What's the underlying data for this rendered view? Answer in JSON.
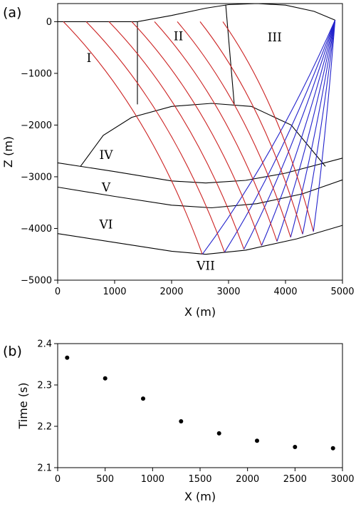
{
  "panel_a": {
    "label": "(a)"
  },
  "panel_b": {
    "label": "(b)"
  },
  "chart_data": [
    {
      "type": "line",
      "title": "",
      "xlabel": "X (m)",
      "ylabel": "Z (m)",
      "xlim": [
        0,
        5000
      ],
      "ylim": [
        -5000,
        350
      ],
      "xticks": [
        0,
        1000,
        2000,
        3000,
        4000,
        5000
      ],
      "yticks": [
        0,
        -1000,
        -2000,
        -3000,
        -4000,
        -5000
      ],
      "grid": false,
      "ray_color_downgoing": "#cc2222",
      "ray_color_upgoing": "#2222cc",
      "boundary_color": "#000000",
      "layers": [
        {
          "name": "I",
          "x": 550,
          "y": -700
        },
        {
          "name": "II",
          "x": 2120,
          "y": -280
        },
        {
          "name": "III",
          "x": 3810,
          "y": -300
        },
        {
          "name": "IV",
          "x": 850,
          "y": -2570
        },
        {
          "name": "V",
          "x": 850,
          "y": -3200
        },
        {
          "name": "VI",
          "x": 850,
          "y": -3920
        },
        {
          "name": "VII",
          "x": 2600,
          "y": -4720
        }
      ],
      "boundaries": {
        "surface": [
          [
            0,
            0
          ],
          [
            1400,
            0
          ],
          [
            2000,
            120
          ],
          [
            2600,
            260
          ],
          [
            3000,
            330
          ],
          [
            3500,
            350
          ],
          [
            4000,
            320
          ],
          [
            4500,
            200
          ],
          [
            4870,
            30
          ]
        ],
        "fault_1": [
          [
            1400,
            0
          ],
          [
            1400,
            -1600
          ]
        ],
        "fault_2": [
          [
            2950,
            330
          ],
          [
            3100,
            -1600
          ]
        ],
        "dome_top": [
          [
            400,
            -2800
          ],
          [
            800,
            -2200
          ],
          [
            1300,
            -1850
          ],
          [
            2000,
            -1640
          ],
          [
            2700,
            -1580
          ],
          [
            3400,
            -1640
          ],
          [
            4100,
            -2000
          ],
          [
            4700,
            -2800
          ]
        ],
        "layer_v_top": [
          [
            0,
            -2730
          ],
          [
            1000,
            -2900
          ],
          [
            2000,
            -3080
          ],
          [
            2600,
            -3120
          ],
          [
            3300,
            -3070
          ],
          [
            4000,
            -2930
          ],
          [
            5000,
            -2640
          ]
        ],
        "layer_vi_top": [
          [
            0,
            -3200
          ],
          [
            1000,
            -3380
          ],
          [
            2000,
            -3550
          ],
          [
            2700,
            -3600
          ],
          [
            3500,
            -3520
          ],
          [
            4300,
            -3330
          ],
          [
            5000,
            -3060
          ]
        ],
        "layer_vii_top": [
          [
            0,
            -4100
          ],
          [
            1000,
            -4270
          ],
          [
            2000,
            -4440
          ],
          [
            2600,
            -4500
          ],
          [
            3300,
            -4420
          ],
          [
            4200,
            -4200
          ],
          [
            5000,
            -3940
          ]
        ]
      },
      "source": {
        "x": 4870,
        "y": 30
      },
      "rays": {
        "surface_x": [
          100,
          500,
          900,
          1300,
          1700,
          2100,
          2500,
          2900
        ],
        "reflection_x": [
          2540,
          2930,
          3270,
          3580,
          3850,
          4090,
          4300,
          4490
        ],
        "reflection_z": [
          -4500,
          -4460,
          -4400,
          -4330,
          -4250,
          -4170,
          -4110,
          -4060
        ]
      }
    },
    {
      "type": "scatter",
      "title": "",
      "xlabel": "X (m)",
      "ylabel": "Time (s)",
      "xlim": [
        0,
        3000
      ],
      "ylim": [
        2.1,
        2.4
      ],
      "xticks": [
        0,
        500,
        1000,
        1500,
        2000,
        2500,
        3000
      ],
      "yticks": [
        2.1,
        2.2,
        2.3,
        2.4
      ],
      "grid": false,
      "marker_color": "#000000",
      "x": [
        100,
        500,
        900,
        1300,
        1700,
        2100,
        2500,
        2900
      ],
      "y": [
        2.366,
        2.316,
        2.267,
        2.212,
        2.183,
        2.165,
        2.15,
        2.147
      ]
    }
  ]
}
